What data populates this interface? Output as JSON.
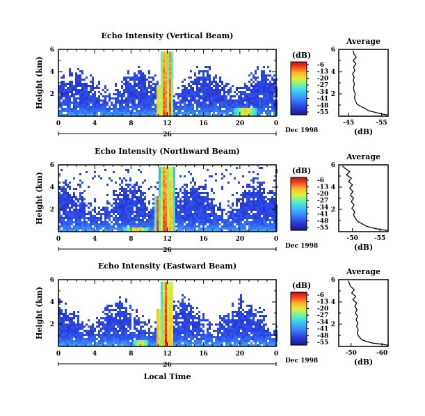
{
  "chart_data": [
    {
      "type": "heatmap",
      "title": "Echo Intensity (Vertical Beam)",
      "ylabel": "Height (km)",
      "xlabel": "",
      "xticks": [
        "0",
        "4",
        "8",
        "12",
        "16",
        "20",
        "0"
      ],
      "yticks": [
        "2",
        "4",
        "6"
      ],
      "date_number": "26",
      "date_text": "Dec 1998",
      "xlim": [
        0,
        24
      ],
      "ylim": [
        0,
        6
      ],
      "colorbar": {
        "label": "(dB)",
        "ticks": [
          "-6",
          "-13",
          "-20",
          "-27",
          "-34",
          "-41",
          "-48",
          "-55"
        ]
      },
      "field": {
        "top_base": 3.6,
        "top_var": 1.0,
        "seed": 11,
        "haze": false
      },
      "cores": [
        {
          "t": 11.6,
          "w": 0.55,
          "top": 6.0,
          "i": 1.0
        },
        {
          "t": 12.2,
          "w": 0.35,
          "top": 6.0,
          "i": 0.85
        },
        {
          "t": 10.9,
          "w": 0.25,
          "top": 3.0,
          "i": 0.9
        },
        {
          "t": 20.5,
          "w": 1.2,
          "top": 0.9,
          "i": 0.55
        }
      ],
      "average": {
        "title": "Average",
        "xlabel": "(dB)",
        "xticks": [
          "-45",
          "-55"
        ],
        "xlim": [
          -42,
          -57
        ],
        "ylim": [
          0,
          6
        ],
        "yticks": [
          "2",
          "4",
          "6"
        ],
        "points": [
          [
            -57,
            0.1
          ],
          [
            -55,
            0.2
          ],
          [
            -53,
            0.35
          ],
          [
            -51,
            0.5
          ],
          [
            -50,
            0.7
          ],
          [
            -48.5,
            0.9
          ],
          [
            -47.5,
            1.1
          ],
          [
            -47,
            1.4
          ],
          [
            -46.8,
            1.7
          ],
          [
            -47,
            2.0
          ],
          [
            -46.6,
            2.3
          ],
          [
            -46.5,
            2.6
          ],
          [
            -46.8,
            2.9
          ],
          [
            -46.4,
            3.2
          ],
          [
            -46.7,
            3.5
          ],
          [
            -46.2,
            3.8
          ],
          [
            -46.9,
            4.1
          ],
          [
            -46.5,
            4.4
          ],
          [
            -47.2,
            4.7
          ],
          [
            -46.4,
            5.0
          ],
          [
            -47.3,
            5.3
          ],
          [
            -46.6,
            5.6
          ],
          [
            -46.3,
            5.9
          ]
        ]
      }
    },
    {
      "type": "heatmap",
      "title": "Echo Intensity (Northward Beam)",
      "ylabel": "Height (km)",
      "xlabel": "",
      "xticks": [
        "0",
        "4",
        "8",
        "12",
        "16",
        "20",
        "0"
      ],
      "yticks": [
        "2",
        "4",
        "6"
      ],
      "date_number": "26",
      "date_text": "Dec 1998",
      "xlim": [
        0,
        24
      ],
      "ylim": [
        0,
        6
      ],
      "colorbar": {
        "label": "(dB)",
        "ticks": [
          "-6",
          "-13",
          "-20",
          "-27",
          "-34",
          "-41",
          "-48",
          "-55"
        ]
      },
      "field": {
        "top_base": 3.9,
        "top_var": 1.1,
        "seed": 23,
        "haze": true
      },
      "cores": [
        {
          "t": 11.6,
          "w": 0.6,
          "top": 6.0,
          "i": 1.0
        },
        {
          "t": 12.3,
          "w": 0.4,
          "top": 6.0,
          "i": 0.85
        },
        {
          "t": 10.8,
          "w": 0.3,
          "top": 3.2,
          "i": 0.9
        },
        {
          "t": 8.5,
          "w": 1.4,
          "top": 0.5,
          "i": 0.6
        }
      ],
      "average": {
        "title": "Average",
        "xlabel": "(dB)",
        "xticks": [
          "-50",
          "-55"
        ],
        "xlim": [
          -47.5,
          -56.5
        ],
        "ylim": [
          0,
          6
        ],
        "yticks": [
          "2",
          "4",
          "6"
        ],
        "points": [
          [
            -56.5,
            0.1
          ],
          [
            -55,
            0.2
          ],
          [
            -53.5,
            0.35
          ],
          [
            -52.5,
            0.5
          ],
          [
            -51.8,
            0.7
          ],
          [
            -51,
            0.9
          ],
          [
            -50.5,
            1.2
          ],
          [
            -50.2,
            1.5
          ],
          [
            -50.4,
            1.8
          ],
          [
            -49.9,
            2.1
          ],
          [
            -50.3,
            2.4
          ],
          [
            -49.8,
            2.7
          ],
          [
            -50.2,
            3.0
          ],
          [
            -49.6,
            3.3
          ],
          [
            -50.1,
            3.6
          ],
          [
            -49.5,
            3.9
          ],
          [
            -50.0,
            4.2
          ],
          [
            -49.3,
            4.5
          ],
          [
            -49.8,
            4.8
          ],
          [
            -48.9,
            5.1
          ],
          [
            -49.5,
            5.4
          ],
          [
            -48.6,
            5.7
          ],
          [
            -48.2,
            5.9
          ]
        ]
      }
    },
    {
      "type": "heatmap",
      "title": "Echo Intensity (Eastward Beam)",
      "ylabel": "Height (km)",
      "xlabel": "Local Time",
      "xticks": [
        "0",
        "4",
        "8",
        "12",
        "16",
        "20",
        "0"
      ],
      "yticks": [
        "2",
        "4",
        "6"
      ],
      "date_number": "26",
      "date_text": "Dec 1998",
      "xlim": [
        0,
        24
      ],
      "ylim": [
        0,
        6
      ],
      "colorbar": {
        "label": "(dB)",
        "ticks": [
          "-6",
          "-13",
          "-20",
          "-27",
          "-34",
          "-41",
          "-48",
          "-55"
        ]
      },
      "field": {
        "top_base": 3.5,
        "top_var": 1.0,
        "seed": 37,
        "haze": false
      },
      "cores": [
        {
          "t": 11.7,
          "w": 0.55,
          "top": 6.0,
          "i": 1.0
        },
        {
          "t": 12.3,
          "w": 0.35,
          "top": 6.0,
          "i": 0.85
        },
        {
          "t": 10.9,
          "w": 0.3,
          "top": 3.5,
          "i": 0.9
        },
        {
          "t": 9.0,
          "w": 0.8,
          "top": 0.6,
          "i": 0.55
        }
      ],
      "average": {
        "title": "Average",
        "xlabel": "(dB)",
        "xticks": [
          "-50",
          "-60"
        ],
        "xlim": [
          -46,
          -62
        ],
        "ylim": [
          0,
          6
        ],
        "yticks": [
          "2",
          "4",
          "6"
        ],
        "points": [
          [
            -62,
            0.1
          ],
          [
            -60,
            0.2
          ],
          [
            -57,
            0.3
          ],
          [
            -55,
            0.45
          ],
          [
            -53.5,
            0.6
          ],
          [
            -52.5,
            0.9
          ],
          [
            -52,
            1.2
          ],
          [
            -52.3,
            1.5
          ],
          [
            -51.8,
            1.8
          ],
          [
            -52.2,
            2.1
          ],
          [
            -51.6,
            2.4
          ],
          [
            -52.1,
            2.7
          ],
          [
            -51.4,
            3.0
          ],
          [
            -51.9,
            3.3
          ],
          [
            -51.2,
            3.6
          ],
          [
            -51.8,
            3.9
          ],
          [
            -50.6,
            4.2
          ],
          [
            -51.5,
            4.5
          ],
          [
            -50.2,
            4.8
          ],
          [
            -51.0,
            5.1
          ],
          [
            -49.8,
            5.4
          ],
          [
            -49.4,
            5.7
          ],
          [
            -49.1,
            5.9
          ]
        ]
      }
    }
  ]
}
